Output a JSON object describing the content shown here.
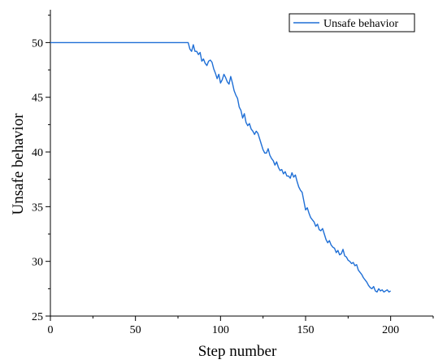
{
  "chart_data": {
    "type": "line",
    "title": "",
    "xlabel": "Step number",
    "ylabel": "Unsafe behavior",
    "xlim": [
      0,
      225
    ],
    "ylim": [
      25,
      53
    ],
    "xticks": [
      0,
      50,
      100,
      150,
      200
    ],
    "yticks": [
      25,
      30,
      35,
      40,
      45,
      50
    ],
    "grid": false,
    "legend": "top-right",
    "series": [
      {
        "name": "Unsafe behavior",
        "color": "#1f6fd6",
        "x": [
          0,
          10,
          20,
          30,
          40,
          50,
          60,
          70,
          80,
          81,
          82,
          83,
          84,
          85,
          86,
          87,
          88,
          89,
          90,
          91,
          92,
          93,
          94,
          95,
          96,
          97,
          98,
          99,
          100,
          101,
          102,
          103,
          104,
          105,
          106,
          107,
          108,
          109,
          110,
          111,
          112,
          113,
          114,
          115,
          116,
          117,
          118,
          119,
          120,
          121,
          122,
          123,
          124,
          125,
          126,
          127,
          128,
          129,
          130,
          131,
          132,
          133,
          134,
          135,
          136,
          137,
          138,
          139,
          140,
          141,
          142,
          143,
          144,
          145,
          146,
          147,
          148,
          149,
          150,
          151,
          152,
          153,
          154,
          155,
          156,
          157,
          158,
          159,
          160,
          161,
          162,
          163,
          164,
          165,
          166,
          167,
          168,
          169,
          170,
          171,
          172,
          173,
          174,
          175,
          176,
          177,
          178,
          179,
          180,
          181,
          182,
          183,
          184,
          185,
          186,
          187,
          188,
          189,
          190,
          191,
          192,
          193,
          194,
          195,
          196,
          197,
          198,
          199,
          200
        ],
        "y": [
          50,
          50,
          50,
          50,
          50,
          50,
          50,
          50,
          50,
          50,
          49.4,
          49.2,
          49.8,
          49.2,
          49.2,
          48.9,
          49.1,
          48.3,
          48.5,
          48.1,
          47.9,
          48.3,
          48.4,
          48.2,
          47.6,
          47.2,
          46.7,
          47.1,
          46.3,
          46.6,
          47.1,
          46.8,
          46.4,
          46.2,
          46.9,
          46.3,
          45.6,
          45.2,
          44.9,
          44.1,
          43.8,
          43.1,
          43.5,
          42.7,
          42.4,
          42.6,
          42.1,
          41.9,
          41.6,
          41.9,
          41.7,
          41.2,
          40.7,
          40.2,
          39.9,
          39.9,
          40.3,
          39.7,
          39.4,
          39.2,
          38.8,
          39.1,
          38.6,
          38.3,
          38.4,
          38.0,
          38.2,
          37.8,
          37.8,
          37.6,
          38.1,
          37.7,
          37.9,
          37.3,
          36.8,
          36.5,
          36.3,
          35.5,
          34.7,
          34.9,
          34.4,
          34.0,
          33.8,
          33.6,
          33.2,
          33.4,
          32.9,
          32.8,
          33.0,
          32.5,
          32.0,
          31.7,
          31.9,
          31.5,
          31.3,
          31.2,
          30.8,
          31.0,
          30.6,
          30.7,
          31.1,
          30.5,
          30.4,
          30.1,
          30.0,
          29.8,
          29.9,
          29.6,
          29.7,
          29.2,
          29.0,
          28.8,
          28.5,
          28.3,
          28.1,
          27.8,
          27.6,
          27.5,
          27.7,
          27.3,
          27.2,
          27.5,
          27.3,
          27.4,
          27.2,
          27.3,
          27.4,
          27.2,
          27.3
        ]
      }
    ]
  }
}
